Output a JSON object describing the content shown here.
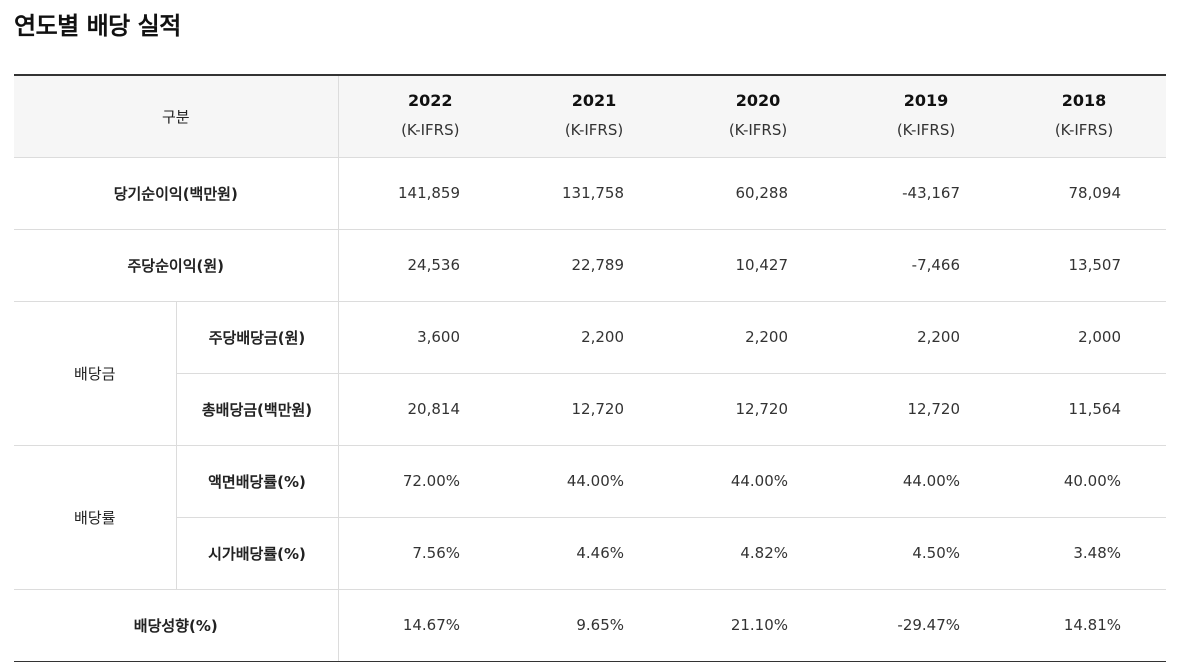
{
  "title": "연도별 배당 실적",
  "header": {
    "category_label": "구분",
    "years": [
      {
        "year": "2022",
        "standard": "(K-IFRS)"
      },
      {
        "year": "2021",
        "standard": "(K-IFRS)"
      },
      {
        "year": "2020",
        "standard": "(K-IFRS)"
      },
      {
        "year": "2019",
        "standard": "(K-IFRS)"
      },
      {
        "year": "2018",
        "standard": "(K-IFRS)"
      }
    ]
  },
  "rows": {
    "net_income": {
      "label": "당기순이익(백만원)",
      "values": [
        "141,859",
        "131,758",
        "60,288",
        "-43,167",
        "78,094"
      ]
    },
    "eps": {
      "label": "주당순이익(원)",
      "values": [
        "24,536",
        "22,789",
        "10,427",
        "-7,466",
        "13,507"
      ]
    },
    "dividend_group_label": "배당금",
    "dps": {
      "label": "주당배당금(원)",
      "values": [
        "3,600",
        "2,200",
        "2,200",
        "2,200",
        "2,000"
      ]
    },
    "total_dividend": {
      "label": "총배당금(백만원)",
      "values": [
        "20,814",
        "12,720",
        "12,720",
        "12,720",
        "11,564"
      ]
    },
    "yield_group_label": "배당률",
    "face_yield": {
      "label": "액면배당률(%)",
      "values": [
        "72.00%",
        "44.00%",
        "44.00%",
        "44.00%",
        "40.00%"
      ]
    },
    "market_yield": {
      "label": "시가배당률(%)",
      "values": [
        "7.56%",
        "4.46%",
        "4.82%",
        "4.50%",
        "3.48%"
      ]
    },
    "payout": {
      "label": "배당성향(%)",
      "values": [
        "14.67%",
        "9.65%",
        "21.10%",
        "-29.47%",
        "14.81%"
      ]
    }
  }
}
